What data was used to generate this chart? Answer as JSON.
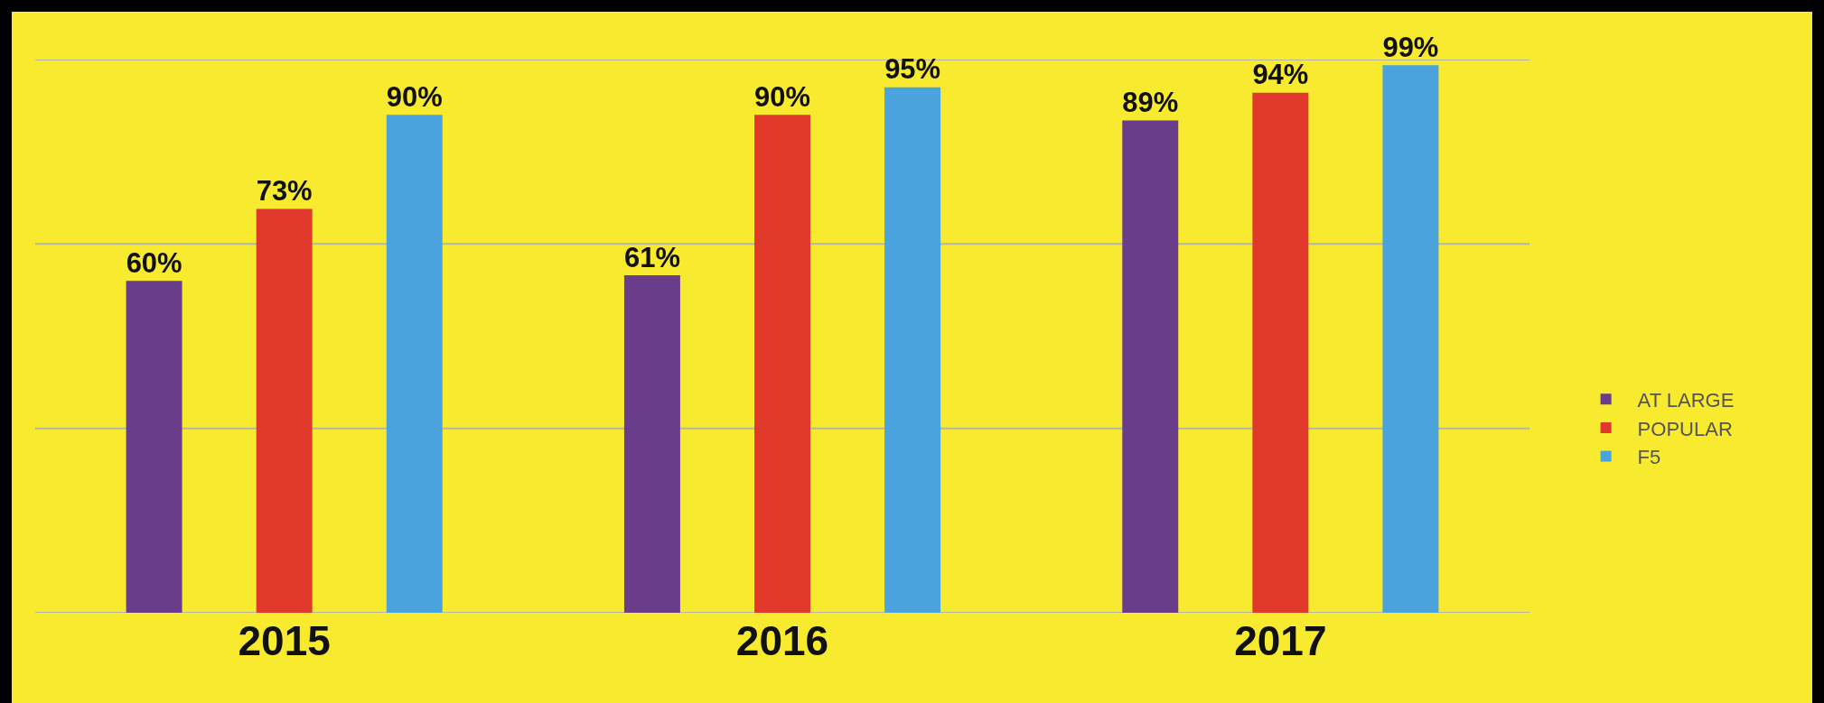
{
  "chart_data": {
    "type": "bar",
    "categories": [
      "2015",
      "2016",
      "2017"
    ],
    "series": [
      {
        "name": "AT LARGE",
        "color": "#6a3d8a",
        "values": [
          60,
          61,
          89
        ],
        "value_labels": [
          "60%",
          "61%",
          "89%"
        ]
      },
      {
        "name": "POPULAR",
        "color": "#e0392b",
        "values": [
          73,
          90,
          94
        ],
        "value_labels": [
          "73%",
          "90%",
          "94%"
        ]
      },
      {
        "name": "F5",
        "color": "#4aa3dc",
        "values": [
          90,
          95,
          99
        ],
        "value_labels": [
          "90%",
          "95%",
          "99%"
        ]
      }
    ],
    "yticks": [
      {
        "value": 0,
        "label": null
      },
      {
        "value": 33.3,
        "label": null
      },
      {
        "value": 66.7,
        "label": null
      },
      {
        "value": 100,
        "label": null
      }
    ],
    "ylim": [
      0,
      100
    ],
    "grid": "y",
    "legend": "right",
    "tick_labels": "x"
  }
}
